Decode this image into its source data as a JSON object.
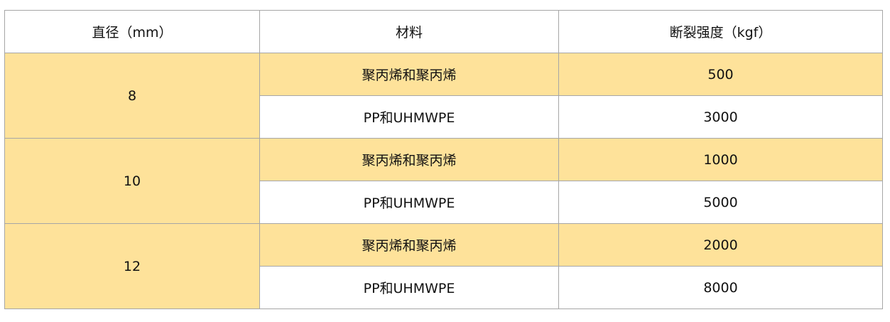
{
  "table": {
    "headers": [
      "直径（mm）",
      "材料",
      "断裂强度（kgf）"
    ],
    "row_highlight_color": "#fee29a",
    "groups": [
      {
        "diameter": "8",
        "rows": [
          {
            "material": "聚丙烯和聚丙烯",
            "strength": "500"
          },
          {
            "material": "PP和UHMWPE",
            "strength": "3000"
          }
        ]
      },
      {
        "diameter": "10",
        "rows": [
          {
            "material": "聚丙烯和聚丙烯",
            "strength": "1000"
          },
          {
            "material": "PP和UHMWPE",
            "strength": "5000"
          }
        ]
      },
      {
        "diameter": "12",
        "rows": [
          {
            "material": "聚丙烯和聚丙烯",
            "strength": "2000"
          },
          {
            "material": "PP和UHMWPE",
            "strength": "8000"
          }
        ]
      }
    ]
  }
}
